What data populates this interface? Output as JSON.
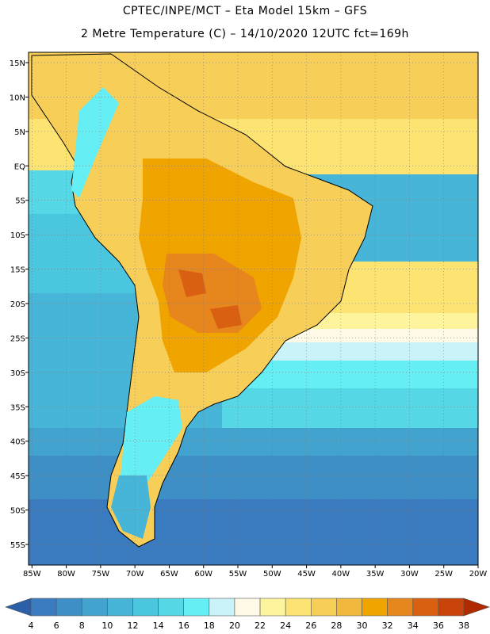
{
  "header": {
    "line1": "CPTEC/INPE/MCT –  Eta Model 15km – GFS",
    "line2": "2 Metre Temperature (C) – 14/10/2020 12UTC fct=169h"
  },
  "map": {
    "lat_labels": [
      "15N",
      "10N",
      "5N",
      "EQ",
      "5S",
      "10S",
      "15S",
      "20S",
      "25S",
      "30S",
      "35S",
      "40S",
      "45S",
      "50S",
      "55S"
    ],
    "lat_values": [
      15,
      10,
      5,
      0,
      -5,
      -10,
      -15,
      -20,
      -25,
      -30,
      -35,
      -40,
      -45,
      -50,
      -55
    ],
    "lon_labels": [
      "85W",
      "80W",
      "75W",
      "70W",
      "65W",
      "60W",
      "55W",
      "50W",
      "45W",
      "40W",
      "35W",
      "30W",
      "25W",
      "20W"
    ],
    "lon_values": [
      -85,
      -80,
      -75,
      -70,
      -65,
      -60,
      -55,
      -50,
      -45,
      -40,
      -35,
      -30,
      -25,
      -20
    ],
    "extent": {
      "lon_min": -85.5,
      "lon_max": -20,
      "lat_min": -58,
      "lat_max": 16.5
    }
  },
  "colorbar": {
    "labels": [
      "4",
      "6",
      "8",
      "10",
      "12",
      "14",
      "16",
      "18",
      "20",
      "22",
      "24",
      "26",
      "28",
      "30",
      "32",
      "34",
      "36",
      "38"
    ],
    "colors": [
      "#3a7bc0",
      "#3e8fc6",
      "#42a3cf",
      "#46b5d8",
      "#4ac6df",
      "#55d7e6",
      "#66eef5",
      "#c9f3f9",
      "#fff9e8",
      "#fff49e",
      "#fde472",
      "#f6ce58",
      "#f0b83c",
      "#f0a400",
      "#e8861e",
      "#d96011",
      "#c74309"
    ],
    "under_color": "#2b5fa8",
    "over_color": "#b02a00"
  }
}
